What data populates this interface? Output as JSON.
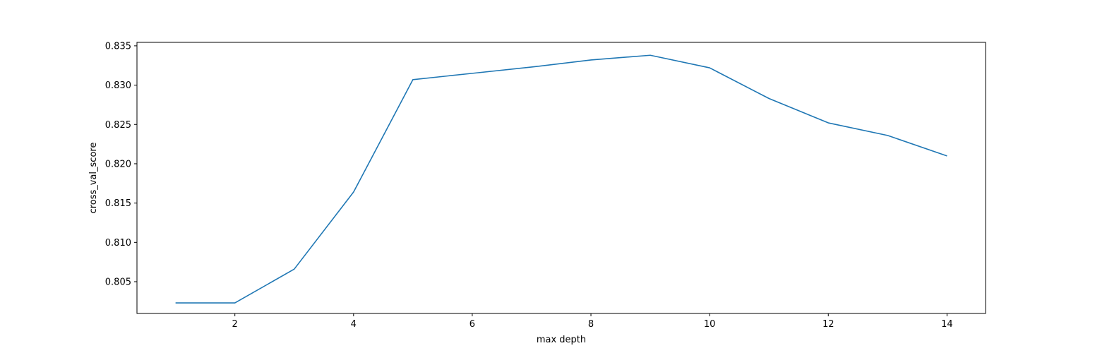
{
  "chart_data": {
    "type": "line",
    "title": "",
    "xlabel": "max depth",
    "ylabel": "cross_val_score",
    "xlim": [
      0.35,
      14.65
    ],
    "ylim": [
      0.80096,
      0.83544
    ],
    "x_ticks": [
      2,
      4,
      6,
      8,
      10,
      12,
      14
    ],
    "x_tick_labels": [
      "2",
      "4",
      "6",
      "8",
      "10",
      "12",
      "14"
    ],
    "y_ticks": [
      0.805,
      0.81,
      0.815,
      0.82,
      0.825,
      0.83,
      0.835
    ],
    "y_tick_labels": [
      "0.805",
      "0.810",
      "0.815",
      "0.820",
      "0.825",
      "0.830",
      "0.835"
    ],
    "grid": false,
    "series": [
      {
        "color": "#1f77b4",
        "x": [
          1,
          2,
          3,
          4,
          5,
          6,
          7,
          8,
          9,
          10,
          11,
          12,
          13,
          14
        ],
        "y": [
          0.8023,
          0.8023,
          0.8066,
          0.8164,
          0.8307,
          0.8315,
          0.8323,
          0.8332,
          0.8338,
          0.8322,
          0.8283,
          0.8252,
          0.8236,
          0.821
        ]
      }
    ]
  }
}
